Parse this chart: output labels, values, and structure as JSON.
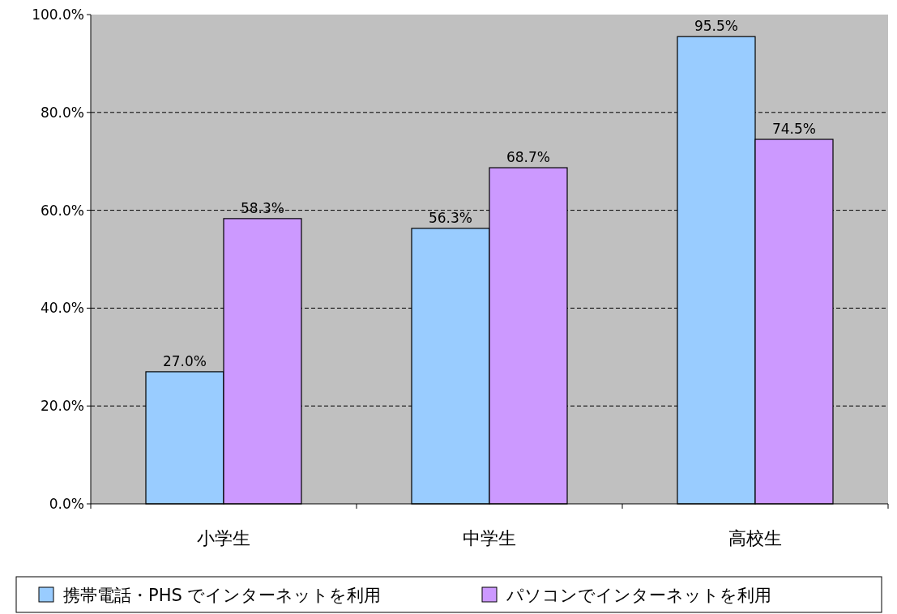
{
  "chart_data": {
    "type": "bar",
    "categories": [
      "小学生",
      "中学生",
      "高校生"
    ],
    "series": [
      {
        "name": "携帯電話・PHS でインターネットを利用",
        "color": "#99ccff",
        "values": [
          27.0,
          56.3,
          95.5
        ],
        "value_labels": [
          "27.0%",
          "56.3%",
          "95.5%"
        ]
      },
      {
        "name": "パソコンでインターネットを利用",
        "color": "#cc99ff",
        "values": [
          58.3,
          68.7,
          74.5
        ],
        "value_labels": [
          "58.3%",
          "68.7%",
          "74.5%"
        ]
      }
    ],
    "ylim": [
      0,
      100
    ],
    "yticks": [
      {
        "value": 0,
        "label": "0.0%"
      },
      {
        "value": 20,
        "label": "20.0%"
      },
      {
        "value": 40,
        "label": "40.0%"
      },
      {
        "value": 60,
        "label": "60.0%"
      },
      {
        "value": 80,
        "label": "80.0%"
      },
      {
        "value": 100,
        "label": "100.0%"
      }
    ],
    "grid": "y",
    "legend": "bottom"
  }
}
